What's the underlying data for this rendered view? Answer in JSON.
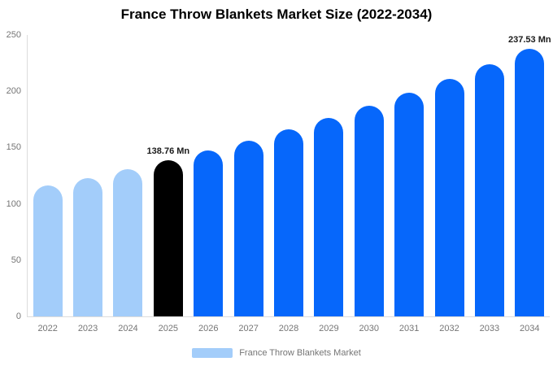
{
  "title": "France Throw Blankets Market Size (2022-2034)",
  "chart_data": {
    "type": "bar",
    "title": "France Throw Blankets Market Size (2022-2034)",
    "categories": [
      "2022",
      "2023",
      "2024",
      "2025",
      "2026",
      "2027",
      "2028",
      "2029",
      "2030",
      "2031",
      "2032",
      "2033",
      "2034"
    ],
    "values": [
      116.0,
      123.1,
      130.7,
      138.76,
      147.3,
      156.4,
      166.0,
      176.2,
      187.1,
      198.6,
      210.8,
      223.8,
      237.53
    ],
    "unit": "Mn",
    "bar_colors": [
      "#A3CDFA",
      "#A3CDFA",
      "#A3CDFA",
      "#000000",
      "#0667FB",
      "#0667FB",
      "#0667FB",
      "#0667FB",
      "#0667FB",
      "#0667FB",
      "#0667FB",
      "#0667FB",
      "#0667FB"
    ],
    "data_labels": [
      {
        "category": "2025",
        "text": "138.76 Mn"
      },
      {
        "category": "2034",
        "text": "237.53 Mn"
      }
    ],
    "ylim": [
      0,
      250
    ],
    "yticks": [
      "0",
      "50",
      "100",
      "150",
      "200",
      "250"
    ],
    "grid": false,
    "legend": {
      "position": "bottom",
      "items": [
        {
          "label": "France Throw Blankets Market",
          "color": "#A3CDFA"
        }
      ]
    }
  },
  "colors": {
    "historical_bar": "#A3CDFA",
    "base_year_bar": "#000000",
    "forecast_bar": "#0667FB",
    "axis_text": "#757575",
    "axis_line": "#DCDCDC",
    "data_label_text": "#1A1A1A",
    "title_text": "#000000",
    "background": "#FFFFFF"
  }
}
